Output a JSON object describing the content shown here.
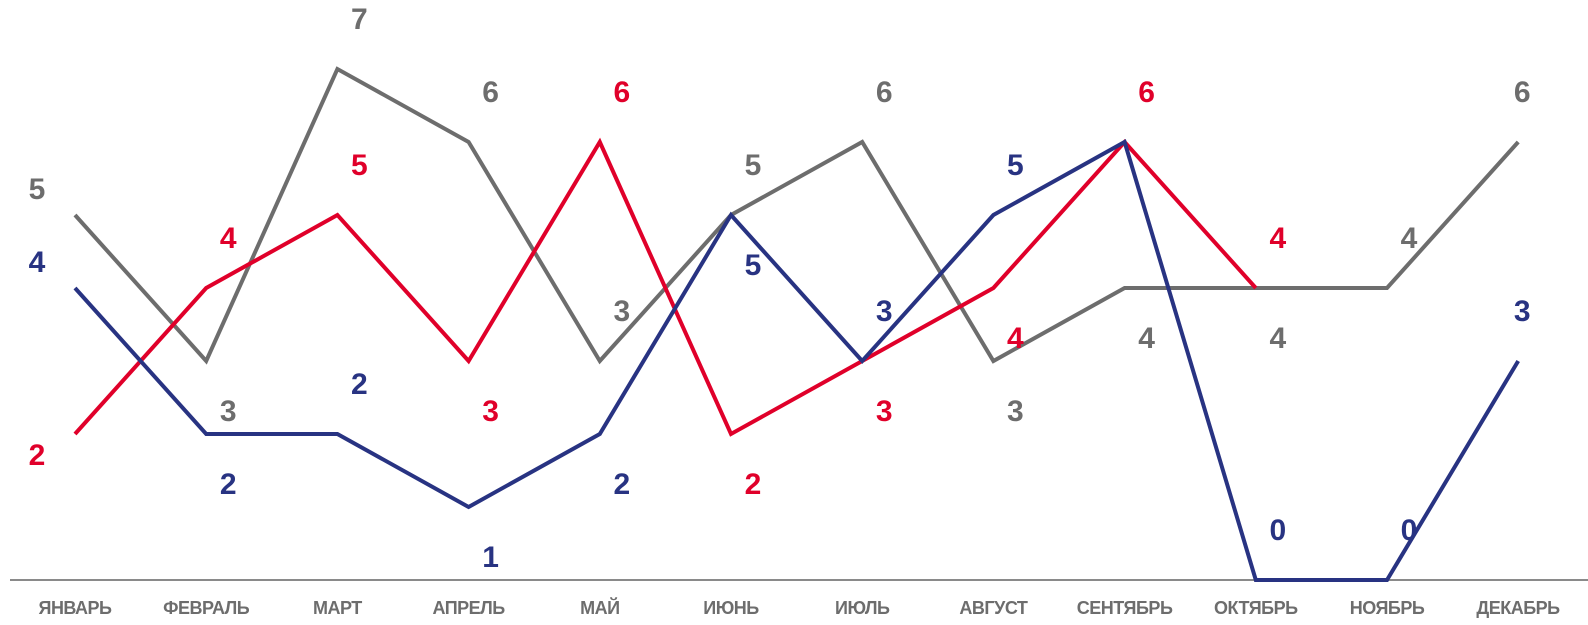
{
  "chart_data": {
    "type": "line",
    "categories": [
      "ЯНВАРЬ",
      "ФЕВРАЛЬ",
      "МАРТ",
      "АПРЕЛЬ",
      "МАЙ",
      "ИЮНЬ",
      "ИЮЛЬ",
      "АВГУСТ",
      "СЕНТЯБРЬ",
      "ОКТЯБРЬ",
      "НОЯБРЬ",
      "ДЕКАБРЬ"
    ],
    "series": [
      {
        "color": "#6d6d6d",
        "values": [
          5,
          3,
          7,
          6,
          3,
          5,
          6,
          3,
          4,
          4,
          4,
          6
        ],
        "label_side": [
          "above",
          "below",
          "above",
          "above",
          "above",
          "above",
          "above",
          "below",
          "below",
          "below",
          "above",
          "above"
        ]
      },
      {
        "color": "#e0002a",
        "values": [
          2,
          4,
          5,
          3,
          6,
          2,
          3,
          4,
          6,
          4,
          null,
          null
        ],
        "label_side": [
          "below",
          "above",
          "above",
          "below",
          "above",
          "below",
          "below",
          "below",
          "above",
          "above",
          null,
          null
        ]
      },
      {
        "color": "#283382",
        "values": [
          4,
          2,
          2,
          1,
          2,
          5,
          3,
          5,
          6,
          0,
          0,
          3
        ],
        "label_side": [
          "above",
          "below",
          "above",
          "below",
          "below",
          "below",
          "above",
          "above",
          null,
          "above",
          "above",
          "above"
        ]
      }
    ],
    "ylim": [
      0,
      7
    ],
    "grid": false,
    "legend": "none"
  }
}
